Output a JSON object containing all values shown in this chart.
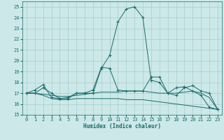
{
  "xlabel": "Humidex (Indice chaleur)",
  "xlim": [
    -0.5,
    23.5
  ],
  "ylim": [
    15,
    25.5
  ],
  "yticks": [
    15,
    16,
    17,
    18,
    19,
    20,
    21,
    22,
    23,
    24,
    25
  ],
  "xticks": [
    0,
    1,
    2,
    3,
    4,
    5,
    6,
    7,
    8,
    9,
    10,
    11,
    12,
    13,
    14,
    15,
    16,
    17,
    18,
    19,
    20,
    21,
    22,
    23
  ],
  "bg_color": "#cce8e8",
  "grid_color": "#aacccc",
  "line_color": "#1a6b6b",
  "curves": [
    {
      "x": [
        0,
        1,
        2,
        3,
        4,
        5,
        6,
        7,
        8,
        9,
        10,
        11,
        12,
        13,
        14,
        15,
        16,
        17,
        18,
        19,
        20,
        21,
        22,
        23
      ],
      "y": [
        17.0,
        17.3,
        17.8,
        16.6,
        16.5,
        16.6,
        17.0,
        17.0,
        17.0,
        19.3,
        20.5,
        23.6,
        24.8,
        25.0,
        24.0,
        18.2,
        18.0,
        17.0,
        17.5,
        17.6,
        17.2,
        16.8,
        15.7,
        15.5
      ],
      "marker": "+"
    },
    {
      "x": [
        0,
        1,
        2,
        3,
        4,
        5,
        6,
        7,
        8,
        9,
        10,
        11,
        12,
        13,
        14,
        15,
        16,
        17,
        18,
        19,
        20,
        21,
        22,
        23
      ],
      "y": [
        17.0,
        17.0,
        16.8,
        16.5,
        16.4,
        16.4,
        16.5,
        16.5,
        16.5,
        16.5,
        16.5,
        16.5,
        16.4,
        16.4,
        16.4,
        16.3,
        16.2,
        16.1,
        16.0,
        15.9,
        15.8,
        15.7,
        15.6,
        15.5
      ],
      "marker": null
    },
    {
      "x": [
        0,
        1,
        2,
        3,
        4,
        5,
        6,
        7,
        8,
        9,
        10,
        11,
        12,
        13,
        14,
        15,
        16,
        17,
        18,
        19,
        20,
        21,
        22,
        23
      ],
      "y": [
        17.0,
        17.0,
        16.9,
        16.8,
        16.7,
        16.7,
        16.8,
        16.9,
        17.0,
        17.1,
        17.1,
        17.1,
        17.2,
        17.2,
        17.2,
        17.1,
        17.0,
        17.0,
        17.0,
        17.1,
        17.2,
        17.0,
        16.6,
        15.5
      ],
      "marker": null
    },
    {
      "x": [
        0,
        1,
        2,
        3,
        4,
        5,
        6,
        7,
        8,
        9,
        10,
        11,
        12,
        13,
        14,
        15,
        16,
        17,
        18,
        19,
        20,
        21,
        22,
        23
      ],
      "y": [
        17.0,
        17.0,
        17.5,
        17.0,
        16.5,
        16.5,
        17.0,
        17.0,
        17.3,
        19.4,
        19.3,
        17.3,
        17.2,
        17.2,
        17.2,
        18.5,
        18.5,
        17.0,
        16.8,
        17.5,
        17.7,
        17.2,
        17.0,
        15.5
      ],
      "marker": "+"
    }
  ]
}
